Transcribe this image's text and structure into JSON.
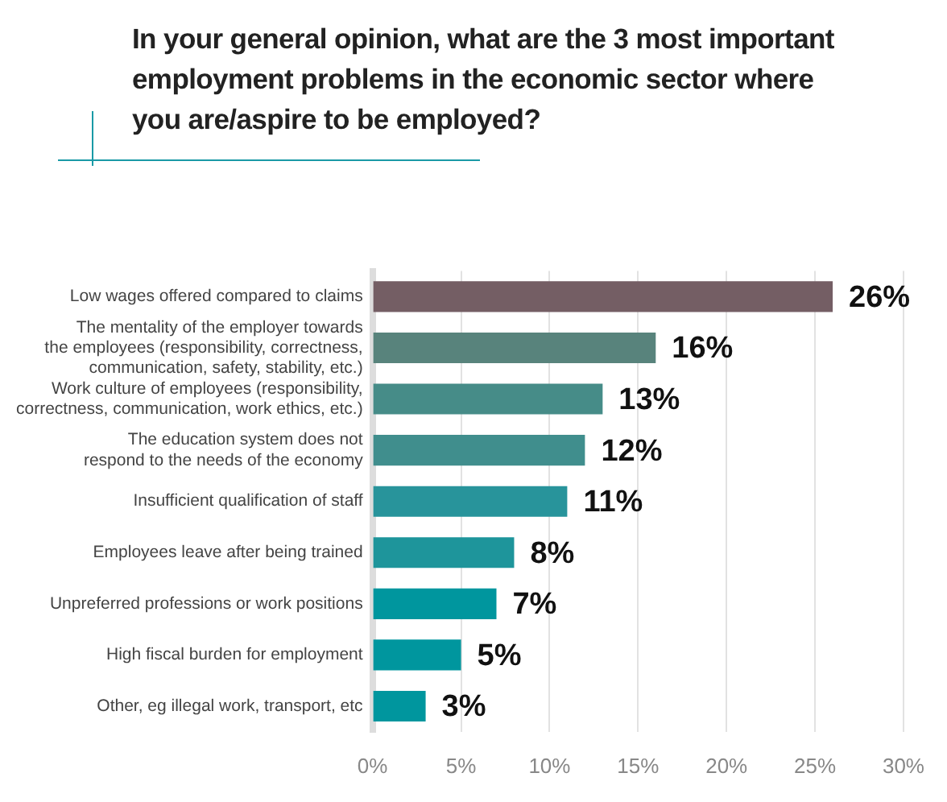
{
  "chart_data": {
    "type": "bar",
    "orientation": "horizontal",
    "title": "In your general opinion, what are the 3 most important employment problems in the economic sector where you are/aspire to be employed?",
    "categories": [
      "Low wages offered compared to claims",
      "The mentality of the employer towards\nthe employees (responsibility, correctness,\ncommunication, safety, stability, etc.)",
      "Work culture of employees (responsibility,\ncorrectness, communication, work ethics, etc.)",
      "The education system does not\nrespond to the needs of the economy",
      "Insufficient qualification of staff",
      "Employees leave after being trained",
      "Unpreferred professions or work positions",
      "High fiscal burden for employment",
      "Other, eg illegal work, transport, etc"
    ],
    "values": [
      26,
      16,
      13,
      12,
      11,
      8,
      7,
      5,
      3
    ],
    "colors": [
      "#745e64",
      "#58837c",
      "#468c88",
      "#408e8d",
      "#28949b",
      "#1e959b",
      "#00969e",
      "#00969e",
      "#00969e"
    ],
    "value_labels": [
      "26%",
      "16%",
      "13%",
      "12%",
      "11%",
      "8%",
      "7%",
      "5%",
      "3%"
    ],
    "xlim": [
      0,
      30
    ],
    "xticks": [
      {
        "value": 0,
        "label": "0%"
      },
      {
        "value": 5,
        "label": "5%"
      },
      {
        "value": 10,
        "label": "10%"
      },
      {
        "value": 15,
        "label": "15%"
      },
      {
        "value": 20,
        "label": "20%"
      },
      {
        "value": 25,
        "label": "25%"
      },
      {
        "value": 30,
        "label": "30%"
      }
    ],
    "grid": "x",
    "legend": false
  }
}
